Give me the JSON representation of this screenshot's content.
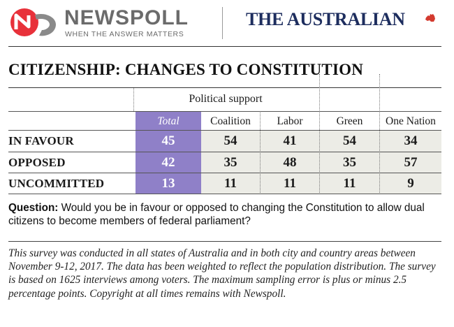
{
  "header": {
    "newspoll_name": "NEWSPOLL",
    "newspoll_tagline": "WHEN THE ANSWER MATTERS",
    "publication_name": "THE AUSTRALIAN",
    "newspoll_logo_colors": [
      "#e8313a",
      "#8a8a8a"
    ]
  },
  "title": "CITIZENSHIP: CHANGES TO CONSTITUTION",
  "table": {
    "group_header": "Political support",
    "columns": [
      "Total",
      "Coalition",
      "Labor",
      "Green",
      "One Nation"
    ],
    "rows": [
      {
        "label": "IN FAVOUR",
        "values": [
          "45",
          "54",
          "41",
          "54",
          "34"
        ]
      },
      {
        "label": "OPPOSED",
        "values": [
          "42",
          "35",
          "48",
          "35",
          "57"
        ]
      },
      {
        "label": "UNCOMMITTED",
        "values": [
          "13",
          "11",
          "11",
          "11",
          "9"
        ]
      }
    ],
    "total_color": "#8f80c8",
    "shade_color": "#ecece6"
  },
  "question": {
    "label": "Question:",
    "text": " Would you be in favour or opposed to changing the Constitution to allow dual citizens to become members of federal parliament?"
  },
  "note": "This survey was conducted in all states of Australia and in both city and country areas between November 9-12, 2017. The data has been weighted to reflect the population distribution. The survey is based on 1625 interviews among voters. The maximum sampling error is plus or minus 2.5 percentage points. Copyright at all times remains with Newspoll."
}
